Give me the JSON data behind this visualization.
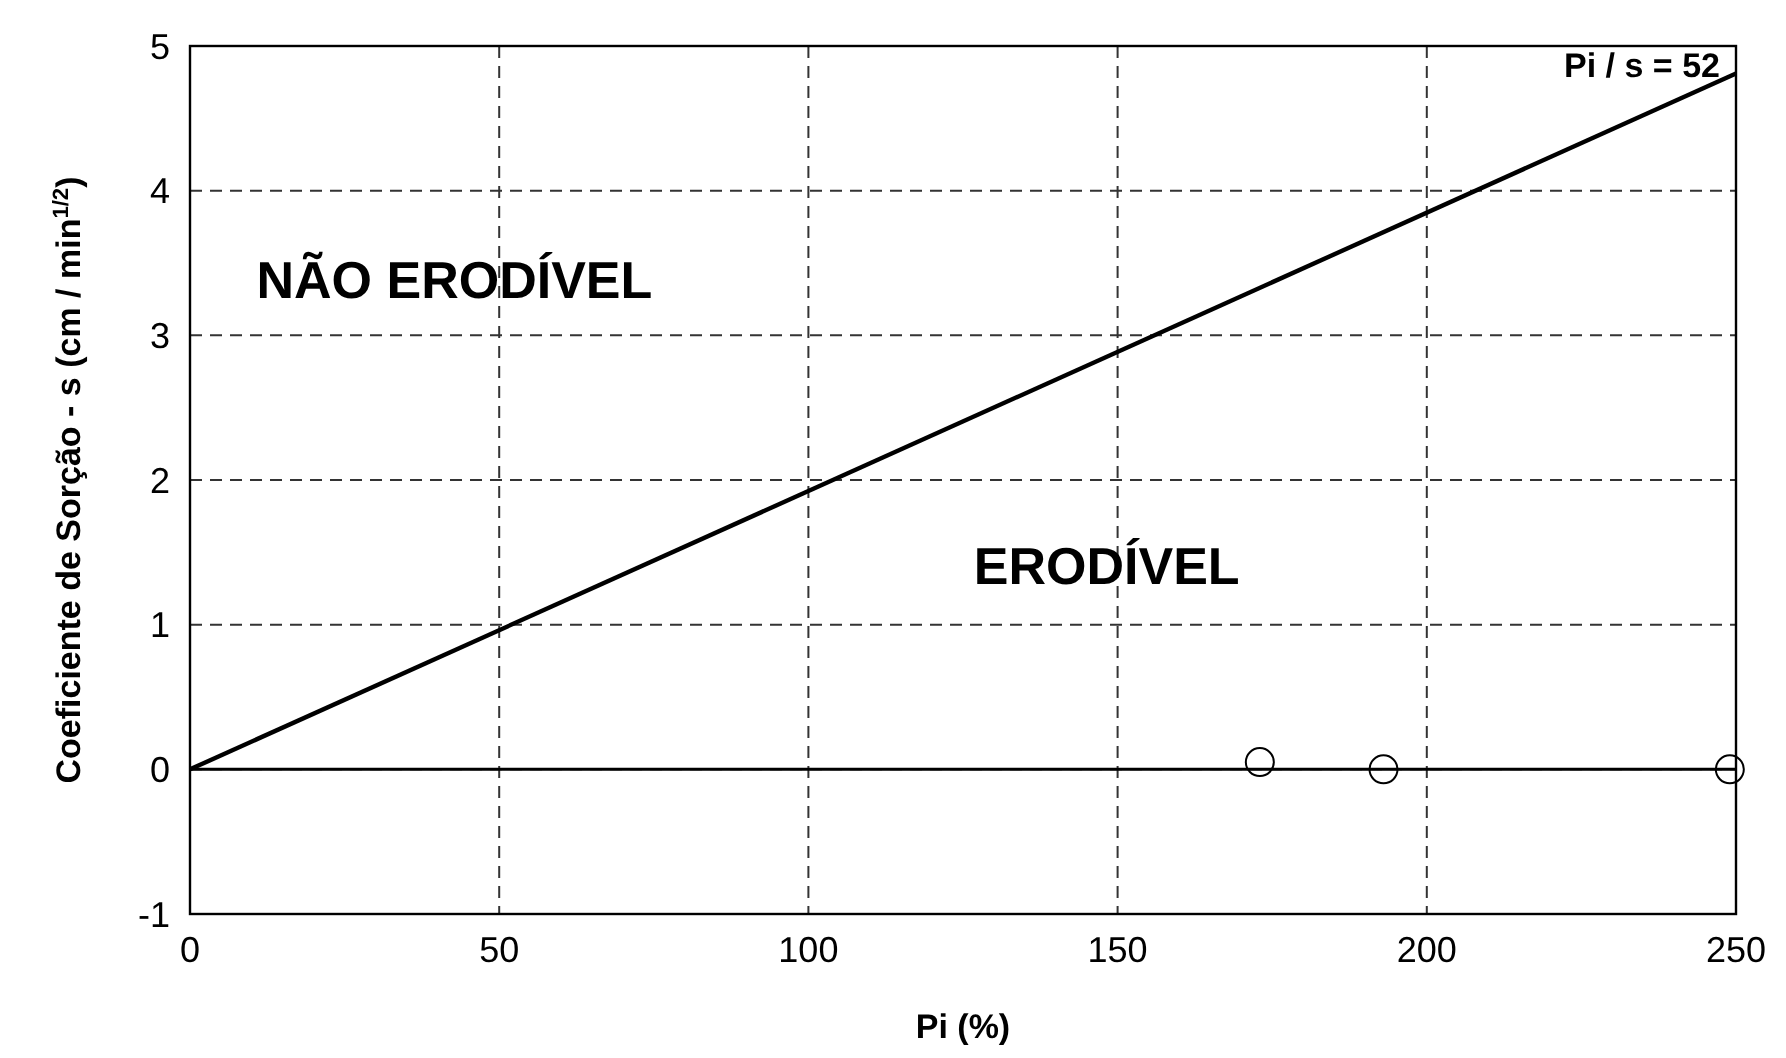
{
  "chart_data": {
    "type": "line",
    "xlabel": "Pi (%)",
    "ylabel": "Coeficiente de Sorção - s (cm / min$^{1/2}$)",
    "xlim": [
      0,
      250
    ],
    "xticks": [
      0,
      50,
      100,
      150,
      200,
      250
    ],
    "ylim": [
      -1,
      5
    ],
    "yticks": [
      -1,
      0,
      1,
      2,
      3,
      4,
      5
    ],
    "grid": true,
    "series": [
      {
        "x": [
          0,
          250
        ],
        "values": [
          0,
          4.81
        ],
        "color": "#000000",
        "marker": "none",
        "line_style": "solid"
      },
      {
        "type": "scatter",
        "x": [
          173,
          193,
          249
        ],
        "values": [
          0.05,
          0,
          0
        ],
        "color": "#000000",
        "marker": "circle"
      }
    ],
    "ref_lines": [
      {
        "axis": "y",
        "value": 0,
        "color": "#000000",
        "line_style": "solid"
      }
    ],
    "annotations": [
      "NÃO ERODÍVEL",
      "ERODÍVEL",
      {
        "text": "Pi / s = 52",
        "x": 250,
        "y": 4.81
      }
    ]
  }
}
